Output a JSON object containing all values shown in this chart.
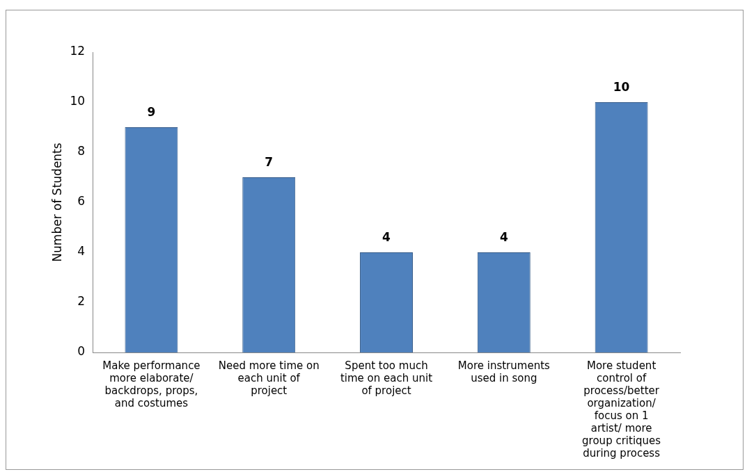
{
  "chart_data": {
    "type": "bar",
    "ylabel": "Number of Students",
    "categories": [
      "Make performance more elaborate/ backdrops, props, and costumes",
      "Need more time on each unit of project",
      "Spent too much time on each unit of project",
      "More instruments used in song",
      "More student control of process/better organization/ focus on 1 artist/ more group critiques during process"
    ],
    "values": [
      9,
      7,
      4,
      4,
      10
    ],
    "color": "#4f81bd",
    "ylim": [
      0,
      12
    ],
    "yticks": [
      0,
      2,
      4,
      6,
      8,
      10,
      12
    ],
    "data_labels": true
  }
}
